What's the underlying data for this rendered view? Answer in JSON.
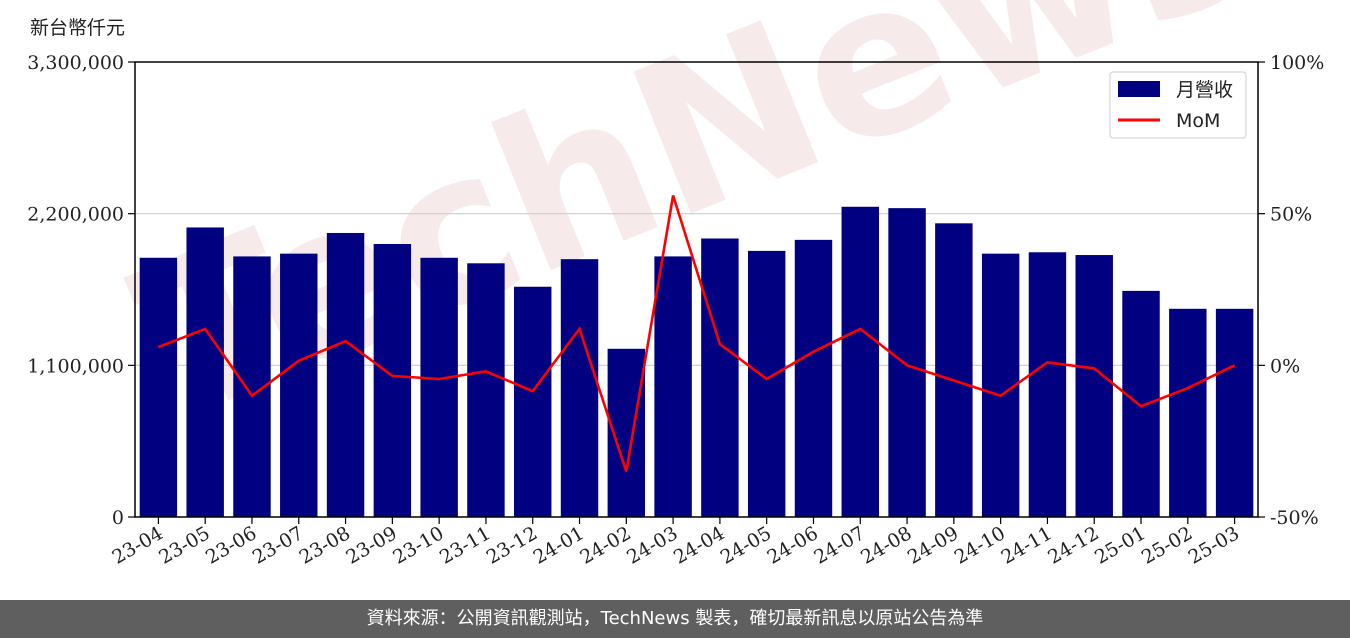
{
  "chart_data": {
    "type": "bar",
    "categories": [
      "23-04",
      "23-05",
      "23-06",
      "23-07",
      "23-08",
      "23-09",
      "23-10",
      "23-11",
      "23-12",
      "24-01",
      "24-02",
      "24-03",
      "24-04",
      "24-05",
      "24-06",
      "24-07",
      "24-08",
      "24-09",
      "24-10",
      "24-11",
      "24-12",
      "25-01",
      "25-02",
      "25-03"
    ],
    "series": [
      {
        "name": "月營收",
        "type": "bar",
        "color": "#000080",
        "values": [
          1880000,
          2100000,
          1890000,
          1910000,
          2060000,
          1980000,
          1880000,
          1840000,
          1670000,
          1870000,
          1220000,
          1890000,
          2020000,
          1930000,
          2010000,
          2250000,
          2240000,
          2130000,
          1910000,
          1920000,
          1900000,
          1640000,
          1510000,
          1510000
        ]
      },
      {
        "name": "MoM",
        "type": "line",
        "axis": "right",
        "color": "#ff0000",
        "values": [
          6,
          12,
          -10,
          1.5,
          8,
          -3.5,
          -4.5,
          -2,
          -8.5,
          12,
          -35,
          56,
          7,
          -4.5,
          4.5,
          12,
          0,
          -5,
          -10,
          1,
          -1,
          -13.5,
          -7.5,
          0
        ]
      }
    ],
    "ylabel": "新台幣仟元",
    "ylim": [
      0,
      3300000
    ],
    "yticks": [
      "0",
      "1,100,000",
      "2,200,000",
      "3,300,000"
    ],
    "y2lim": [
      -50,
      100
    ],
    "y2ticks": [
      "-50%",
      "0%",
      "50%",
      "100%"
    ],
    "grid": true,
    "legend_position": "top-right"
  },
  "watermark": "TechNews",
  "footer": "資料來源：公開資訊觀測站，TechNews 製表，確切最新訊息以原站公告為準"
}
